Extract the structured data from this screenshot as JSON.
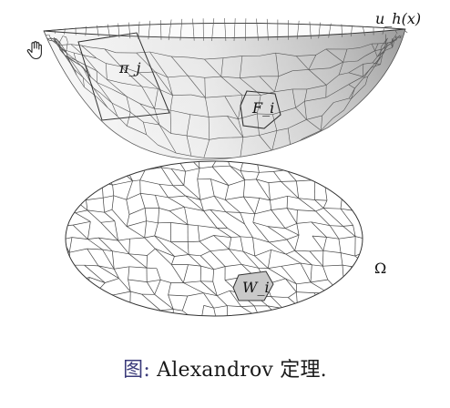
{
  "figure": {
    "labels": {
      "surface": "u_h(x)",
      "plane": "π_j",
      "facet": "F_i",
      "domain": "Ω",
      "cell": "W_i"
    },
    "icon": "hand-pointer-icon"
  },
  "caption": {
    "label": "图:",
    "text": "Alexandrov 定理."
  }
}
